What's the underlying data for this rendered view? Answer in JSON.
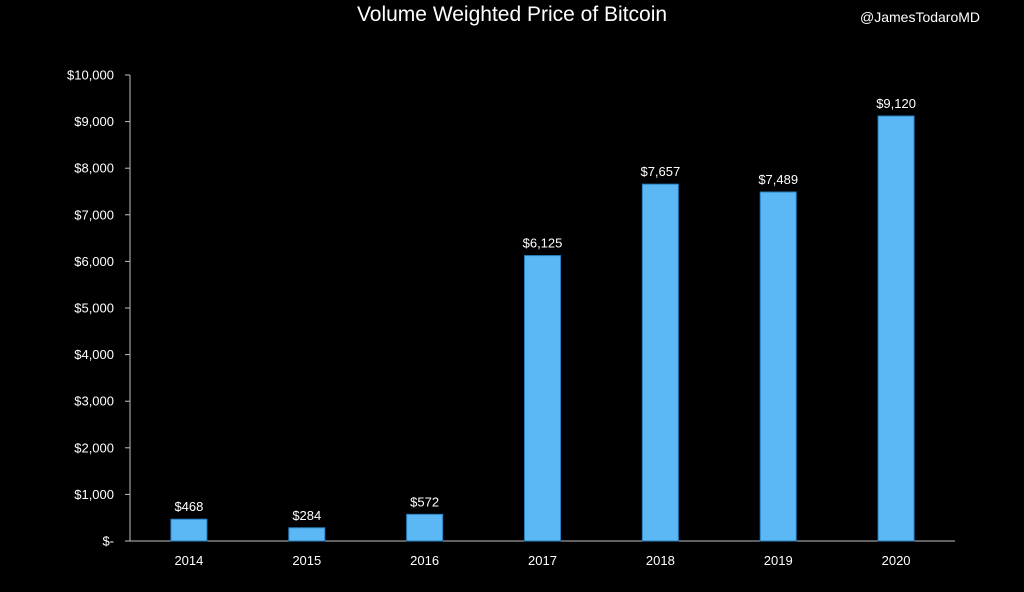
{
  "header": {
    "title": "Volume Weighted Price of Bitcoin",
    "watermark": "@JamesTodaroMD"
  },
  "colors": {
    "background": "#000000",
    "bar_fill": "#5bb8f5",
    "bar_edge": "#2a7fc0",
    "text": "#ffffff",
    "axis": "#bfbfbf"
  },
  "chart_data": {
    "type": "bar",
    "title": "Volume Weighted Price of Bitcoin",
    "xlabel": "",
    "ylabel": "",
    "categories": [
      "2014",
      "2015",
      "2016",
      "2017",
      "2018",
      "2019",
      "2020"
    ],
    "values": [
      468,
      284,
      572,
      6125,
      7657,
      7489,
      9120
    ],
    "data_labels": [
      "$468",
      "$284",
      "$572",
      "$6,125",
      "$7,657",
      "$7,489",
      "$9,120"
    ],
    "ylim": [
      0,
      10000
    ],
    "yticks": [
      0,
      1000,
      2000,
      3000,
      4000,
      5000,
      6000,
      7000,
      8000,
      9000,
      10000
    ],
    "ytick_labels": [
      "$-",
      "$1,000",
      "$2,000",
      "$3,000",
      "$4,000",
      "$5,000",
      "$6,000",
      "$7,000",
      "$8,000",
      "$9,000",
      "$10,000"
    ],
    "grid": false,
    "legend": "none"
  }
}
